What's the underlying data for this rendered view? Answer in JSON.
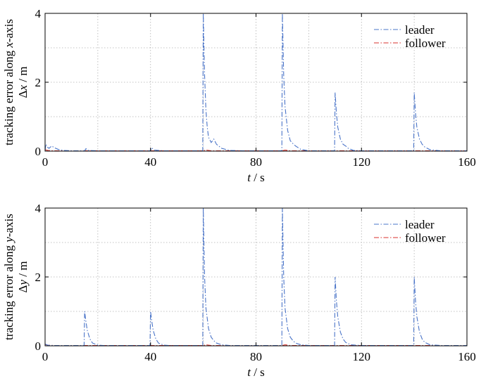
{
  "chart_data": [
    {
      "type": "line",
      "xlabel": "t / s",
      "ylabel_line1": "tracking error along x-axis",
      "ylabel_line2": "Δx / m",
      "xlim": [
        0,
        160
      ],
      "ylim": [
        0,
        4
      ],
      "xticks": [
        0,
        40,
        80,
        120,
        160
      ],
      "yticks": [
        0,
        2,
        4
      ],
      "grid": true,
      "legend_position": "top-right",
      "series": [
        {
          "name": "leader",
          "color": "#4a74c8",
          "points": [
            [
              0,
              0.02
            ],
            [
              0.3,
              0.2
            ],
            [
              0.8,
              0.12
            ],
            [
              1.5,
              0.08
            ],
            [
              2.5,
              0.15
            ],
            [
              3.5,
              0.1
            ],
            [
              5,
              0.05
            ],
            [
              7,
              0.02
            ],
            [
              10,
              0.01
            ],
            [
              15,
              0.01
            ],
            [
              15.5,
              0.07
            ],
            [
              16.5,
              0.02
            ],
            [
              20,
              0.01
            ],
            [
              40,
              0.01
            ],
            [
              40.3,
              0.1
            ],
            [
              41.5,
              0.03
            ],
            [
              45,
              0.01
            ],
            [
              59.8,
              0.01
            ],
            [
              60,
              4.0
            ],
            [
              60.5,
              2.2
            ],
            [
              61,
              1.2
            ],
            [
              61.5,
              0.7
            ],
            [
              62,
              0.4
            ],
            [
              63,
              0.25
            ],
            [
              64,
              0.35
            ],
            [
              65,
              0.2
            ],
            [
              67,
              0.08
            ],
            [
              70,
              0.02
            ],
            [
              75,
              0.01
            ],
            [
              89.8,
              0.01
            ],
            [
              90,
              4.0
            ],
            [
              90.5,
              2.2
            ],
            [
              91,
              1.3
            ],
            [
              92,
              0.6
            ],
            [
              93,
              0.3
            ],
            [
              94,
              0.22
            ],
            [
              95,
              0.15
            ],
            [
              97,
              0.05
            ],
            [
              100,
              0.01
            ],
            [
              109.8,
              0.01
            ],
            [
              110,
              1.7
            ],
            [
              110.5,
              1.1
            ],
            [
              111,
              0.7
            ],
            [
              112,
              0.35
            ],
            [
              113,
              0.2
            ],
            [
              114,
              0.15
            ],
            [
              115,
              0.08
            ],
            [
              117,
              0.02
            ],
            [
              120,
              0.01
            ],
            [
              139.8,
              0.01
            ],
            [
              140,
              1.7
            ],
            [
              140.5,
              1.1
            ],
            [
              141,
              0.7
            ],
            [
              142,
              0.35
            ],
            [
              143,
              0.2
            ],
            [
              144,
              0.12
            ],
            [
              146,
              0.04
            ],
            [
              150,
              0.01
            ],
            [
              160,
              0.01
            ]
          ]
        },
        {
          "name": "follower",
          "color": "#d9302c",
          "points": [
            [
              0,
              0.04
            ],
            [
              1,
              0.02
            ],
            [
              3,
              0.01
            ],
            [
              60,
              0.01
            ],
            [
              61,
              0.03
            ],
            [
              63,
              0.01
            ],
            [
              90,
              0.01
            ],
            [
              91,
              0.03
            ],
            [
              93,
              0.01
            ],
            [
              160,
              0.01
            ]
          ]
        }
      ]
    },
    {
      "type": "line",
      "xlabel": "t / s",
      "ylabel_line1": "tracking error along y-axis",
      "ylabel_line2": "Δy / m",
      "xlim": [
        0,
        160
      ],
      "ylim": [
        0,
        4
      ],
      "xticks": [
        0,
        40,
        80,
        120,
        160
      ],
      "yticks": [
        0,
        2,
        4
      ],
      "grid": true,
      "legend_position": "top-right",
      "series": [
        {
          "name": "leader",
          "color": "#4a74c8",
          "points": [
            [
              0,
              0.05
            ],
            [
              1,
              0.02
            ],
            [
              3,
              0.01
            ],
            [
              14.8,
              0.01
            ],
            [
              15,
              1.0
            ],
            [
              15.5,
              0.7
            ],
            [
              16,
              0.45
            ],
            [
              17,
              0.2
            ],
            [
              18,
              0.08
            ],
            [
              20,
              0.02
            ],
            [
              22,
              0.01
            ],
            [
              39.8,
              0.01
            ],
            [
              40,
              1.0
            ],
            [
              40.5,
              0.7
            ],
            [
              41,
              0.45
            ],
            [
              42,
              0.2
            ],
            [
              43,
              0.08
            ],
            [
              45,
              0.02
            ],
            [
              47,
              0.01
            ],
            [
              59.8,
              0.01
            ],
            [
              60,
              4.0
            ],
            [
              60.5,
              2.0
            ],
            [
              61,
              1.1
            ],
            [
              62,
              0.5
            ],
            [
              63,
              0.25
            ],
            [
              64,
              0.15
            ],
            [
              65,
              0.08
            ],
            [
              67,
              0.03
            ],
            [
              70,
              0.01
            ],
            [
              89.8,
              0.01
            ],
            [
              90,
              4.0
            ],
            [
              90.5,
              2.0
            ],
            [
              91,
              1.1
            ],
            [
              92,
              0.5
            ],
            [
              93,
              0.25
            ],
            [
              94,
              0.15
            ],
            [
              95,
              0.08
            ],
            [
              97,
              0.03
            ],
            [
              100,
              0.01
            ],
            [
              109.8,
              0.01
            ],
            [
              110,
              2.0
            ],
            [
              110.5,
              1.3
            ],
            [
              111,
              0.85
            ],
            [
              112,
              0.4
            ],
            [
              113,
              0.2
            ],
            [
              114,
              0.1
            ],
            [
              116,
              0.03
            ],
            [
              120,
              0.01
            ],
            [
              139.8,
              0.01
            ],
            [
              140,
              2.0
            ],
            [
              140.5,
              1.3
            ],
            [
              141,
              0.85
            ],
            [
              142,
              0.4
            ],
            [
              143,
              0.2
            ],
            [
              144,
              0.1
            ],
            [
              146,
              0.03
            ],
            [
              150,
              0.01
            ],
            [
              160,
              0.01
            ]
          ]
        },
        {
          "name": "follower",
          "color": "#d9302c",
          "points": [
            [
              0,
              0.04
            ],
            [
              1,
              0.02
            ],
            [
              3,
              0.01
            ],
            [
              60,
              0.01
            ],
            [
              61,
              0.03
            ],
            [
              63,
              0.01
            ],
            [
              90,
              0.01
            ],
            [
              91,
              0.03
            ],
            [
              93,
              0.01
            ],
            [
              160,
              0.01
            ]
          ]
        }
      ]
    }
  ]
}
